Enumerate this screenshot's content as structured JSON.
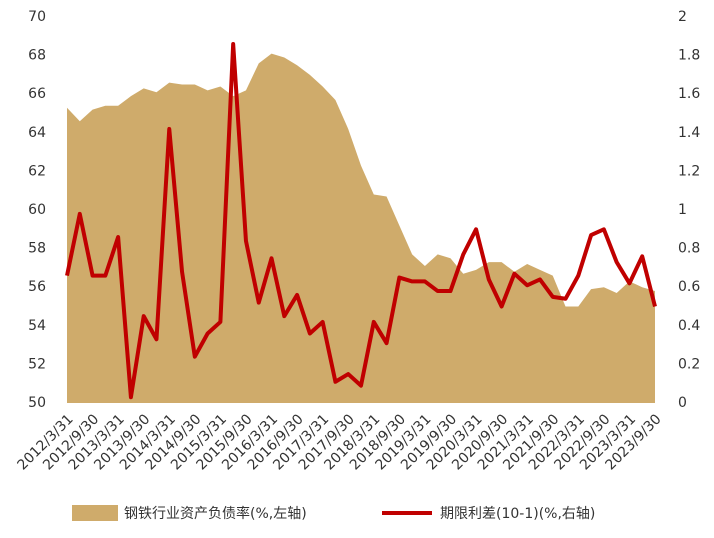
{
  "chart_data": {
    "type": "area-line",
    "categories": [
      "2012/3/31",
      null,
      "2012/9/30",
      null,
      "2013/3/31",
      null,
      "2013/9/30",
      null,
      "2014/3/31",
      null,
      "2014/9/30",
      null,
      "2015/3/31",
      null,
      "2015/9/30",
      null,
      "2016/3/31",
      null,
      "2016/9/30",
      null,
      "2017/3/31",
      null,
      "2017/9/30",
      null,
      "2018/3/31",
      null,
      "2018/9/30",
      null,
      "2019/3/31",
      null,
      "2019/9/30",
      null,
      "2020/3/31",
      null,
      "2020/9/30",
      null,
      "2021/3/31",
      null,
      "2021/9/30",
      null,
      "2022/3/31",
      null,
      "2022/9/30",
      null,
      "2023/3/31",
      null,
      "2023/9/30"
    ],
    "series": [
      {
        "name": "钢铁行业资产负债率(%,左轴)",
        "color": "#cfab6b",
        "axis": "y",
        "values": [
          65.3,
          64.6,
          65.2,
          65.4,
          65.4,
          65.9,
          66.3,
          66.1,
          66.6,
          66.5,
          66.5,
          66.2,
          66.4,
          65.9,
          66.2,
          67.6,
          68.1,
          67.9,
          67.5,
          67.0,
          66.4,
          65.7,
          64.2,
          62.3,
          60.8,
          60.7,
          59.2,
          57.7,
          57.1,
          57.7,
          57.5,
          56.7,
          56.9,
          57.3,
          57.3,
          56.8,
          57.2,
          56.9,
          56.6,
          55.0,
          55.0,
          55.9,
          56.0,
          55.7,
          56.3,
          56.0,
          55.8
        ]
      },
      {
        "name": "期限利差(10-1)(%,右轴)",
        "color": "#c00000",
        "axis": "y2",
        "values": [
          0.66,
          0.98,
          0.66,
          0.66,
          0.86,
          0.03,
          0.45,
          0.33,
          1.42,
          0.68,
          0.24,
          0.36,
          0.42,
          1.86,
          0.84,
          0.52,
          0.75,
          0.45,
          0.56,
          0.36,
          0.42,
          0.11,
          0.15,
          0.09,
          0.42,
          0.31,
          0.65,
          0.63,
          0.63,
          0.58,
          0.58,
          0.77,
          0.9,
          0.64,
          0.5,
          0.67,
          0.61,
          0.64,
          0.55,
          0.54,
          0.66,
          0.87,
          0.9,
          0.73,
          0.62,
          0.76,
          0.5
        ]
      }
    ],
    "ylim": [
      50,
      70
    ],
    "yticks": [
      50,
      52,
      54,
      56,
      58,
      60,
      62,
      64,
      66,
      68,
      70
    ],
    "y2lim": [
      0,
      2
    ],
    "y2ticks": [
      0,
      0.2,
      0.4,
      0.6,
      0.8,
      1,
      1.2,
      1.4,
      1.6,
      1.8,
      2
    ],
    "legend": "bottom"
  }
}
